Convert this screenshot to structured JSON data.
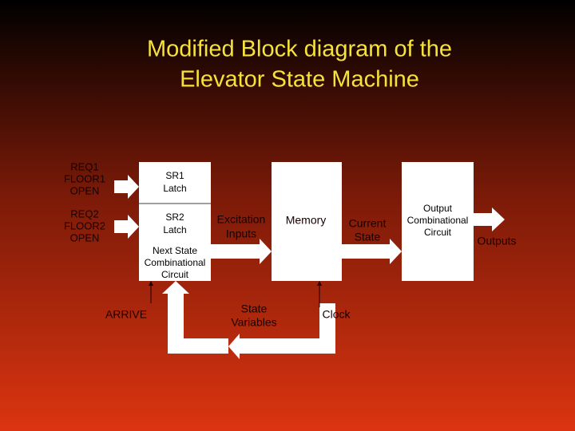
{
  "title": [
    "Modified Block diagram of the",
    "Elevator State Machine"
  ],
  "inputs": [
    [
      "REQ1",
      "FLOOR1",
      "OPEN"
    ],
    [
      "REQ2",
      "FLOOR2",
      "OPEN"
    ]
  ],
  "blocks": {
    "sr1": [
      "SR1",
      "Latch"
    ],
    "sr2": [
      "SR2",
      "Latch"
    ],
    "next_state": [
      "Next State",
      "Combinational",
      "Circuit"
    ],
    "memory": "Memory",
    "output": [
      "Output",
      "Combinational",
      "Circuit"
    ]
  },
  "labels": {
    "excitation": [
      "Excitation",
      "Inputs"
    ],
    "current_state": [
      "Current",
      "State"
    ],
    "outputs": "Outputs",
    "arrive": "ARRIVE",
    "state_variables": [
      "State",
      "Variables"
    ],
    "clock": "Clock"
  }
}
